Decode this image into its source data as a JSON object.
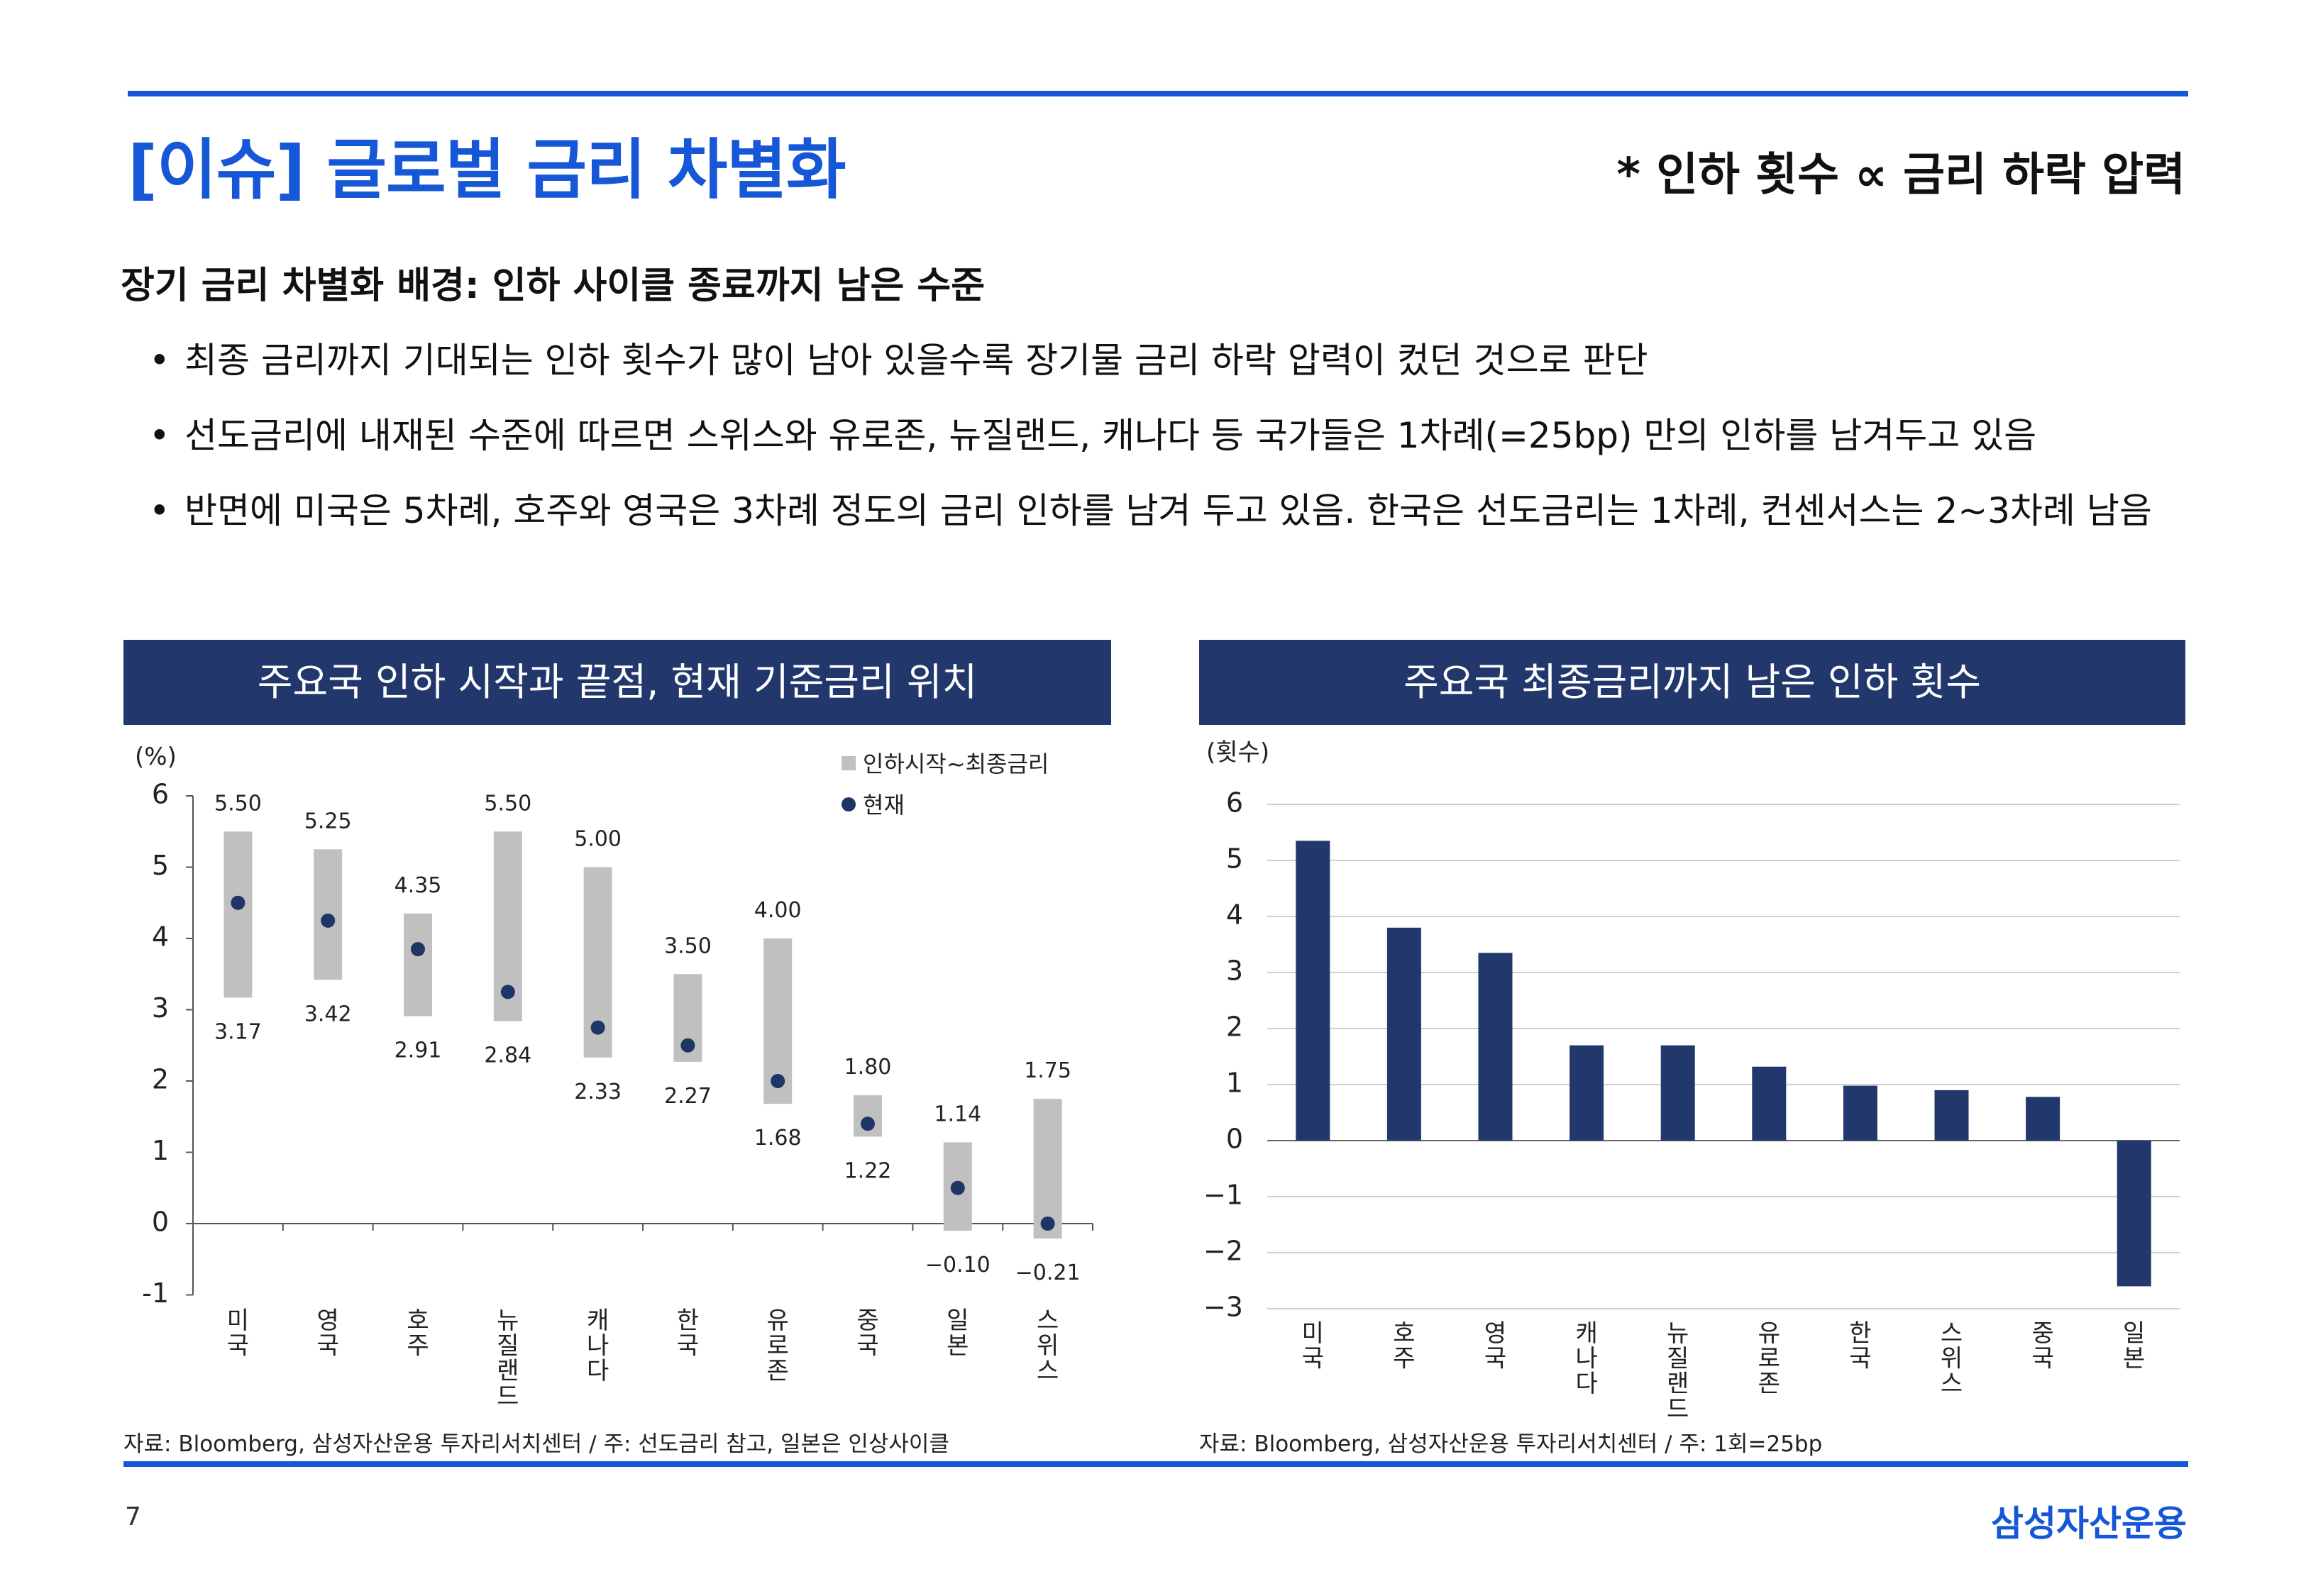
{
  "header": {
    "title": "[이슈] 글로벌 금리 차별화",
    "note": "* 인하 횟수 ∝ 금리 하락 압력"
  },
  "section": {
    "subtitle": "장기 금리 차별화 배경: 인하 사이클 종료까지 남은 수준",
    "bullets": [
      "최종 금리까지 기대되는 인하 횟수가 많이 남아 있을수록 장기물 금리 하락 압력이 컸던 것으로 판단",
      "선도금리에 내재된 수준에 따르면 스위스와 유로존, 뉴질랜드, 캐나다 등 국가들은 1차례(=25bp) 만의 인하를 남겨두고 있음",
      "반면에 미국은 5차례, 호주와 영국은 3차례 정도의 금리 인하를 남겨 두고 있음. 한국은 선도금리는 1차례, 컨센서스는 2~3차례 남음"
    ],
    "bullet_symbol": "•"
  },
  "panels": {
    "left_title": "주요국 인하 시작과 끝점, 현재 기준금리 위치",
    "right_title": "주요국 최종금리까지 남은 인하 횟수",
    "left_source": "자료: Bloomberg, 삼성자산운용 투자리서치센터 / 주: 선도금리 참고, 일본은 인상사이클",
    "right_source": "자료: Bloomberg, 삼성자산운용 투자리서치센터 / 주: 1회=25bp"
  },
  "footer": {
    "page": "7",
    "brand": "삼성자산운용"
  },
  "colors": {
    "accent": "#1557d6",
    "navy": "#22376b",
    "range_bar": "#c0c0c0",
    "dot": "#1f3566"
  },
  "chart_data": [
    {
      "type": "bar",
      "subtype": "floating-range-with-dot",
      "title": "",
      "ylabel": "(%)",
      "ylim": [
        -1,
        6
      ],
      "yticks": [
        "-1",
        "0",
        "1",
        "2",
        "3",
        "4",
        "5",
        "6"
      ],
      "categories": [
        "미국",
        "영국",
        "호주",
        "뉴질랜드",
        "캐나다",
        "한국",
        "유로존",
        "중국",
        "일본",
        "스위스"
      ],
      "series": [
        {
          "name": "인하시작~최종금리",
          "start": [
            5.5,
            5.25,
            4.35,
            5.5,
            5.0,
            3.5,
            4.0,
            1.8,
            1.14,
            1.75
          ],
          "end": [
            3.17,
            3.42,
            2.91,
            2.84,
            2.33,
            2.27,
            1.68,
            1.22,
            -0.1,
            -0.21
          ],
          "start_labels": [
            "5.50",
            "5.25",
            "4.35",
            "5.50",
            "5.00",
            "3.50",
            "4.00",
            "1.80",
            "1.14",
            "1.75"
          ],
          "end_labels": [
            "3.17",
            "3.42",
            "2.91",
            "2.84",
            "2.33",
            "2.27",
            "1.68",
            "1.22",
            "−0.10",
            "−0.21"
          ]
        },
        {
          "name": "현재",
          "values": [
            4.5,
            4.25,
            3.85,
            3.25,
            2.75,
            2.5,
            2.0,
            1.4,
            0.5,
            0.0
          ]
        }
      ],
      "grid": false,
      "legend": "top-right"
    },
    {
      "type": "bar",
      "title": "",
      "ylabel": "(횟수)",
      "ylim": [
        -3,
        6
      ],
      "yticks": [
        "−3",
        "−2",
        "−1",
        "0",
        "1",
        "2",
        "3",
        "4",
        "5",
        "6"
      ],
      "categories": [
        "미국",
        "호주",
        "영국",
        "캐나다",
        "뉴질랜드",
        "유로존",
        "한국",
        "스위스",
        "중국",
        "일본"
      ],
      "values": [
        5.35,
        3.8,
        3.35,
        1.7,
        1.7,
        1.32,
        0.98,
        0.9,
        0.78,
        -2.6
      ],
      "grid": true,
      "legend": "none"
    }
  ]
}
